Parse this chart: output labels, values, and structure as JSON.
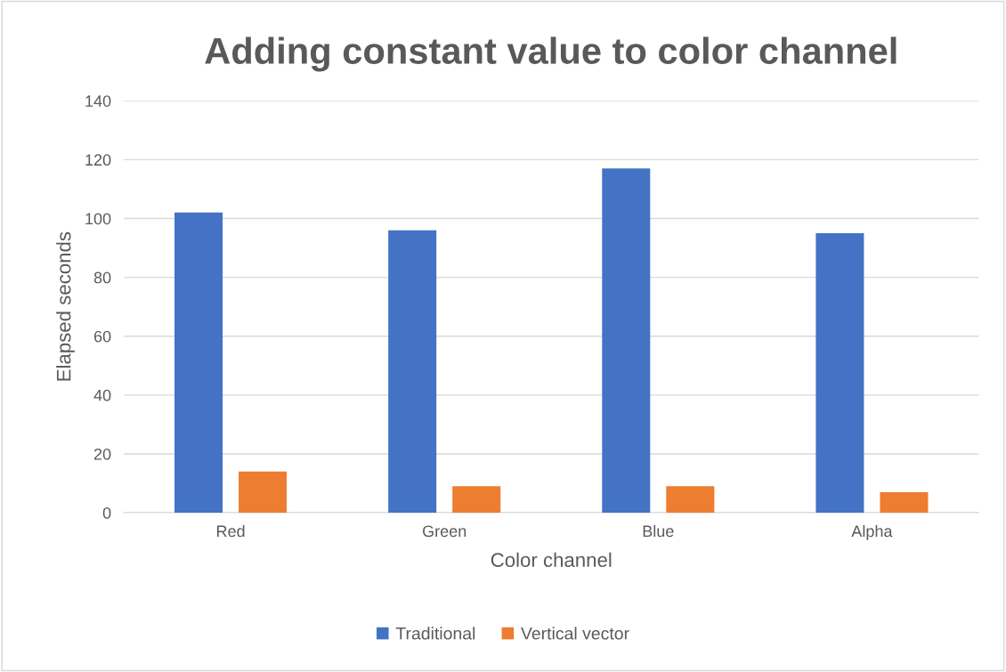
{
  "chart_data": {
    "type": "bar",
    "title": "Adding constant value to color channel",
    "xlabel": "Color channel",
    "ylabel": "Elapsed seconds",
    "categories": [
      "Red",
      "Green",
      "Blue",
      "Alpha"
    ],
    "series": [
      {
        "name": "Traditional",
        "color": "#4472c4",
        "values": [
          102,
          96,
          117,
          95
        ]
      },
      {
        "name": "Vertical vector",
        "color": "#ed7d31",
        "values": [
          14,
          9,
          9,
          7
        ]
      }
    ],
    "ylim": [
      0,
      140
    ],
    "yticks": [
      0,
      20,
      40,
      60,
      80,
      100,
      120,
      140
    ],
    "grid": "y",
    "legend": "bottom"
  }
}
